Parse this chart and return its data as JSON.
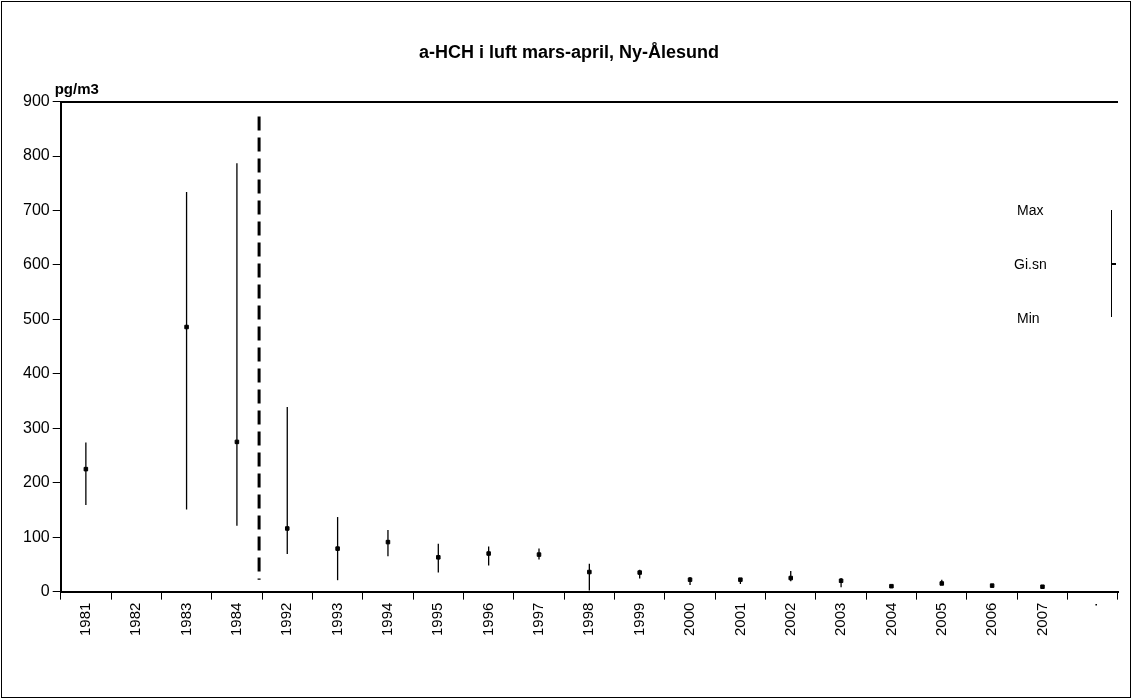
{
  "chart_data": {
    "type": "scatter",
    "title": "a-HCH i luft mars-april, Ny-Ålesund",
    "ylabel": "pg/m3",
    "categories": [
      "1981",
      "1982",
      "1983",
      "1984",
      "1992",
      "1993",
      "1994",
      "1995",
      "1996",
      "1997",
      "1998",
      "1999",
      "2000",
      "2001",
      "2002",
      "2003",
      "2004",
      "2005",
      "2006",
      "2007",
      "."
    ],
    "values": [
      225,
      null,
      486,
      275,
      116,
      79,
      91,
      63,
      70,
      68,
      36,
      35,
      22,
      22,
      25,
      20,
      10,
      15,
      11,
      9,
      null
    ],
    "errors": [
      [
        159,
        274
      ],
      null,
      [
        151,
        734
      ],
      [
        121,
        787
      ],
      [
        69,
        339
      ],
      [
        21,
        137
      ],
      [
        65,
        113
      ],
      [
        35,
        88
      ],
      [
        48,
        83
      ],
      [
        59,
        79
      ],
      [
        2,
        51
      ],
      [
        24,
        40
      ],
      [
        12,
        27
      ],
      [
        14,
        24
      ],
      [
        19,
        38
      ],
      [
        8,
        25
      ],
      [
        8,
        12
      ],
      [
        13,
        22
      ],
      [
        9,
        13
      ],
      [
        7,
        12
      ],
      null
    ],
    "color": "#000000",
    "ylim": [
      0,
      900
    ],
    "yticks": [
      0,
      100,
      200,
      300,
      400,
      500,
      600,
      700,
      800,
      900
    ],
    "grid": false,
    "marker": "square",
    "ref_lines": [
      {
        "axis": "x",
        "value": "1984",
        "line_style": "dashed",
        "color": "#000000"
      }
    ],
    "annotations": [
      "Max",
      "Gi.sn",
      "Min"
    ]
  }
}
